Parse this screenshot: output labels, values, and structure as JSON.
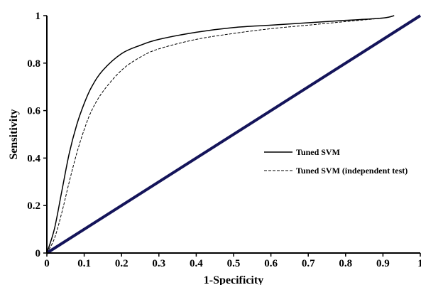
{
  "chart_data": {
    "type": "line",
    "title": "",
    "xlabel": "1-Specificity",
    "ylabel": "Sensitivity",
    "xlim": [
      0,
      1
    ],
    "ylim": [
      0,
      1
    ],
    "xticks": [
      "0",
      "0.1",
      "0.2",
      "0.3",
      "0.4",
      "0.5",
      "0.6",
      "0.7",
      "0.8",
      "0.9",
      "1"
    ],
    "yticks": [
      "0",
      "0.2",
      "0.4",
      "0.6",
      "0.8",
      "1"
    ],
    "grid": false,
    "legend_position": "center-right",
    "series": [
      {
        "name": "Tuned SVM",
        "style": "solid",
        "color": "#000000",
        "x": [
          0,
          0.02,
          0.04,
          0.06,
          0.08,
          0.1,
          0.12,
          0.15,
          0.2,
          0.25,
          0.3,
          0.4,
          0.5,
          0.6,
          0.7,
          0.8,
          0.9,
          0.93
        ],
        "y": [
          0,
          0.1,
          0.26,
          0.42,
          0.54,
          0.63,
          0.7,
          0.77,
          0.84,
          0.875,
          0.9,
          0.93,
          0.95,
          0.96,
          0.97,
          0.98,
          0.99,
          1.0
        ]
      },
      {
        "name": "Tuned SVM (independent test)",
        "style": "dashed",
        "color": "#000000",
        "x": [
          0,
          0.02,
          0.04,
          0.06,
          0.08,
          0.1,
          0.12,
          0.15,
          0.2,
          0.25,
          0.3,
          0.4,
          0.5,
          0.6,
          0.7,
          0.8,
          0.9,
          0.93
        ],
        "y": [
          0,
          0.06,
          0.17,
          0.3,
          0.42,
          0.52,
          0.6,
          0.68,
          0.77,
          0.825,
          0.86,
          0.9,
          0.925,
          0.945,
          0.96,
          0.975,
          0.99,
          1.0
        ]
      },
      {
        "name": "",
        "style": "solid",
        "color": "#14145a",
        "x": [
          0,
          1
        ],
        "y": [
          0,
          1
        ]
      }
    ]
  }
}
